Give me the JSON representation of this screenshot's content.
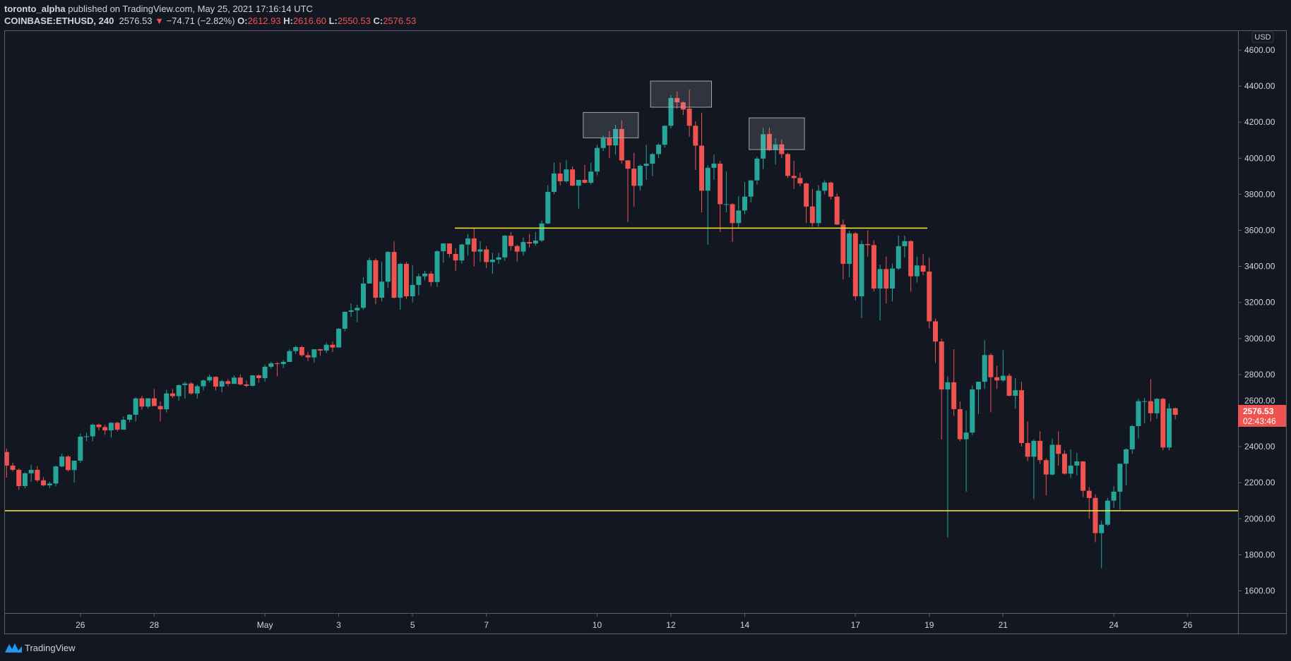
{
  "header": {
    "author": "toronto_alpha",
    "published": "published on TradingView.com, May 25, 2021 17:16:14 UTC",
    "symbol": "COINBASE:ETHUSD, 240",
    "last": "2576.53",
    "change_arrow": "▼",
    "change": "−74.71 (−2.82%)",
    "o_label": "O:",
    "o": "2612.93",
    "h_label": "H:",
    "h": "2616.60",
    "l_label": "L:",
    "l": "2550.53",
    "c_label": "C:",
    "c": "2576.53"
  },
  "price_axis": {
    "currency": "USD",
    "last_price_label": "2576.53",
    "countdown": "02:43:46"
  },
  "footer": {
    "brand": "TradingView"
  },
  "colors": {
    "up": "#26a69a",
    "down": "#ef5350",
    "line": "#ffeb3b",
    "background": "#131722",
    "last_price": "#ef5350"
  },
  "chart_data": {
    "type": "candlestick",
    "symbol": "COINBASE:ETHUSD",
    "interval_minutes": 240,
    "first_candle": "2021-04-24T00:00:00Z",
    "ylim": [
      1500,
      4650
    ],
    "yticks": [
      1600,
      1800,
      2000,
      2200,
      2400,
      2600,
      2800,
      3000,
      3200,
      3400,
      3600,
      3800,
      4000,
      4200,
      4400,
      4600
    ],
    "xticks": [
      {
        "label": "26",
        "date": "2021-04-26"
      },
      {
        "label": "28",
        "date": "2021-04-28"
      },
      {
        "label": "May",
        "date": "2021-05-01"
      },
      {
        "label": "3",
        "date": "2021-05-03"
      },
      {
        "label": "5",
        "date": "2021-05-05"
      },
      {
        "label": "7",
        "date": "2021-05-07"
      },
      {
        "label": "10",
        "date": "2021-05-10"
      },
      {
        "label": "12",
        "date": "2021-05-12"
      },
      {
        "label": "14",
        "date": "2021-05-14"
      },
      {
        "label": "17",
        "date": "2021-05-17"
      },
      {
        "label": "19",
        "date": "2021-05-19"
      },
      {
        "label": "21",
        "date": "2021-05-21"
      },
      {
        "label": "24",
        "date": "2021-05-24"
      },
      {
        "label": "26",
        "date": "2021-05-26"
      }
    ],
    "grid": false,
    "ohlc": [
      [
        2370,
        2390,
        2228,
        2295
      ],
      [
        2295,
        2310,
        2262,
        2271
      ],
      [
        2271,
        2280,
        2160,
        2181
      ],
      [
        2181,
        2258,
        2168,
        2252
      ],
      [
        2252,
        2300,
        2205,
        2271
      ],
      [
        2271,
        2292,
        2203,
        2213
      ],
      [
        2213,
        2230,
        2180,
        2185
      ],
      [
        2185,
        2205,
        2170,
        2195
      ],
      [
        2195,
        2295,
        2180,
        2290
      ],
      [
        2290,
        2360,
        2285,
        2345
      ],
      [
        2345,
        2352,
        2262,
        2270
      ],
      [
        2270,
        2322,
        2200,
        2322
      ],
      [
        2322,
        2472,
        2310,
        2455
      ],
      [
        2455,
        2478,
        2430,
        2457
      ],
      [
        2457,
        2528,
        2430,
        2522
      ],
      [
        2522,
        2528,
        2490,
        2508
      ],
      [
        2508,
        2521,
        2465,
        2490
      ],
      [
        2490,
        2536,
        2450,
        2532
      ],
      [
        2532,
        2538,
        2485,
        2494
      ],
      [
        2494,
        2568,
        2494,
        2549
      ],
      [
        2549,
        2580,
        2535,
        2577
      ],
      [
        2577,
        2675,
        2540,
        2667
      ],
      [
        2668,
        2682,
        2605,
        2622
      ],
      [
        2622,
        2668,
        2610,
        2668
      ],
      [
        2668,
        2720,
        2625,
        2625
      ],
      [
        2625,
        2650,
        2540,
        2607
      ],
      [
        2607,
        2715,
        2590,
        2695
      ],
      [
        2695,
        2720,
        2670,
        2680
      ],
      [
        2680,
        2745,
        2655,
        2741
      ],
      [
        2741,
        2760,
        2667,
        2750
      ],
      [
        2750,
        2757,
        2688,
        2695
      ],
      [
        2695,
        2744,
        2667,
        2735
      ],
      [
        2735,
        2772,
        2712,
        2767
      ],
      [
        2767,
        2800,
        2757,
        2787
      ],
      [
        2787,
        2790,
        2712,
        2733
      ],
      [
        2733,
        2770,
        2700,
        2763
      ],
      [
        2763,
        2775,
        2735,
        2748
      ],
      [
        2748,
        2795,
        2748,
        2783
      ],
      [
        2783,
        2800,
        2740,
        2745
      ],
      [
        2745,
        2767,
        2730,
        2737
      ],
      [
        2737,
        2797,
        2735,
        2795
      ],
      [
        2795,
        2800,
        2755,
        2780
      ],
      [
        2780,
        2855,
        2760,
        2843
      ],
      [
        2843,
        2870,
        2833,
        2862
      ],
      [
        2862,
        2868,
        2790,
        2858
      ],
      [
        2858,
        2880,
        2835,
        2870
      ],
      [
        2870,
        2940,
        2870,
        2930
      ],
      [
        2930,
        2960,
        2915,
        2952
      ],
      [
        2952,
        2960,
        2900,
        2907
      ],
      [
        2907,
        2925,
        2875,
        2895
      ],
      [
        2895,
        2940,
        2865,
        2940
      ],
      [
        2940,
        2943,
        2905,
        2933
      ],
      [
        2933,
        2977,
        2920,
        2965
      ],
      [
        2965,
        2983,
        2925,
        2950
      ],
      [
        2950,
        3058,
        2950,
        3054
      ],
      [
        3054,
        3150,
        3040,
        3148
      ],
      [
        3148,
        3195,
        3120,
        3156
      ],
      [
        3156,
        3188,
        3090,
        3170
      ],
      [
        3170,
        3340,
        3160,
        3305
      ],
      [
        3305,
        3448,
        3305,
        3434
      ],
      [
        3434,
        3445,
        3190,
        3226
      ],
      [
        3226,
        3425,
        3205,
        3315
      ],
      [
        3315,
        3485,
        3280,
        3480
      ],
      [
        3480,
        3540,
        3222,
        3226
      ],
      [
        3226,
        3420,
        3160,
        3414
      ],
      [
        3414,
        3425,
        3220,
        3234
      ],
      [
        3234,
        3405,
        3200,
        3297
      ],
      [
        3297,
        3360,
        3240,
        3345
      ],
      [
        3345,
        3375,
        3322,
        3360
      ],
      [
        3360,
        3373,
        3290,
        3313
      ],
      [
        3313,
        3490,
        3285,
        3484
      ],
      [
        3484,
        3527,
        3420,
        3527
      ],
      [
        3527,
        3527,
        3450,
        3469
      ],
      [
        3469,
        3500,
        3375,
        3433
      ],
      [
        3433,
        3525,
        3415,
        3521
      ],
      [
        3521,
        3580,
        3460,
        3555
      ],
      [
        3555,
        3612,
        3400,
        3482
      ],
      [
        3482,
        3540,
        3425,
        3494
      ],
      [
        3494,
        3513,
        3390,
        3424
      ],
      [
        3424,
        3475,
        3358,
        3437
      ],
      [
        3437,
        3476,
        3414,
        3450
      ],
      [
        3450,
        3575,
        3430,
        3570
      ],
      [
        3570,
        3590,
        3487,
        3513
      ],
      [
        3513,
        3520,
        3427,
        3482
      ],
      [
        3482,
        3560,
        3460,
        3535
      ],
      [
        3535,
        3580,
        3505,
        3527
      ],
      [
        3527,
        3590,
        3515,
        3543
      ],
      [
        3543,
        3655,
        3535,
        3638
      ],
      [
        3638,
        3850,
        3635,
        3813
      ],
      [
        3813,
        3975,
        3800,
        3915
      ],
      [
        3915,
        3975,
        3850,
        3872
      ],
      [
        3872,
        3990,
        3865,
        3938
      ],
      [
        3938,
        3955,
        3845,
        3848
      ],
      [
        3848,
        3880,
        3721,
        3880
      ],
      [
        3880,
        3962,
        3860,
        3864
      ],
      [
        3864,
        3975,
        3855,
        3926
      ],
      [
        3926,
        4075,
        3905,
        4057
      ],
      [
        4057,
        4128,
        4040,
        4110
      ],
      [
        4110,
        4150,
        4000,
        4071
      ],
      [
        4071,
        4185,
        4020,
        4162
      ],
      [
        4162,
        4210,
        3970,
        3988
      ],
      [
        3988,
        3990,
        3646,
        3942
      ],
      [
        3942,
        4030,
        3730,
        3847
      ],
      [
        3847,
        3965,
        3820,
        3958
      ],
      [
        3958,
        4075,
        3880,
        3970
      ],
      [
        3970,
        4030,
        3900,
        4023
      ],
      [
        4023,
        4082,
        4000,
        4075
      ],
      [
        4075,
        4180,
        4060,
        4180
      ],
      [
        4180,
        4350,
        4165,
        4334
      ],
      [
        4334,
        4370,
        4275,
        4310
      ],
      [
        4310,
        4315,
        4240,
        4270
      ],
      [
        4275,
        4381,
        4120,
        4180
      ],
      [
        4180,
        4205,
        3935,
        4070
      ],
      [
        4070,
        4252,
        3700,
        3820
      ],
      [
        3820,
        3960,
        3520,
        3947
      ],
      [
        3947,
        4020,
        3880,
        3970
      ],
      [
        3970,
        3985,
        3590,
        3745
      ],
      [
        3745,
        3926,
        3700,
        3745
      ],
      [
        3745,
        3750,
        3535,
        3640
      ],
      [
        3640,
        3790,
        3610,
        3710
      ],
      [
        3710,
        3868,
        3690,
        3787
      ],
      [
        3787,
        3878,
        3755,
        3877
      ],
      [
        3877,
        4008,
        3853,
        3998
      ],
      [
        3998,
        4170,
        3940,
        4133
      ],
      [
        4135,
        4170,
        4040,
        4045
      ],
      [
        4045,
        4110,
        3965,
        4077
      ],
      [
        4077,
        4105,
        4000,
        4023
      ],
      [
        4023,
        4030,
        3890,
        3902
      ],
      [
        3902,
        3985,
        3830,
        3890
      ],
      [
        3890,
        3920,
        3845,
        3860
      ],
      [
        3860,
        3865,
        3640,
        3732
      ],
      [
        3732,
        3830,
        3620,
        3640
      ],
      [
        3640,
        3850,
        3620,
        3820
      ],
      [
        3820,
        3878,
        3800,
        3865
      ],
      [
        3865,
        3870,
        3770,
        3787
      ],
      [
        3787,
        3805,
        3630,
        3632
      ],
      [
        3632,
        3660,
        3328,
        3414
      ],
      [
        3414,
        3598,
        3340,
        3583
      ],
      [
        3583,
        3590,
        3210,
        3234
      ],
      [
        3234,
        3545,
        3113,
        3524
      ],
      [
        3524,
        3600,
        3455,
        3518
      ],
      [
        3518,
        3545,
        3260,
        3277
      ],
      [
        3277,
        3410,
        3101,
        3385
      ],
      [
        3385,
        3455,
        3195,
        3277
      ],
      [
        3277,
        3415,
        3205,
        3388
      ],
      [
        3388,
        3570,
        3380,
        3512
      ],
      [
        3512,
        3570,
        3450,
        3540
      ],
      [
        3540,
        3545,
        3260,
        3345
      ],
      [
        3345,
        3455,
        3310,
        3405
      ],
      [
        3405,
        3470,
        3350,
        3371
      ],
      [
        3371,
        3450,
        3055,
        3095
      ],
      [
        3095,
        3110,
        2865,
        2983
      ],
      [
        2983,
        3000,
        2440,
        2717
      ],
      [
        2717,
        2790,
        1895,
        2757
      ],
      [
        2757,
        2940,
        2570,
        2608
      ],
      [
        2608,
        2650,
        2430,
        2441
      ],
      [
        2441,
        2600,
        2150,
        2478
      ],
      [
        2478,
        2740,
        2465,
        2717
      ],
      [
        2717,
        2760,
        2580,
        2760
      ],
      [
        2760,
        2990,
        2720,
        2908
      ],
      [
        2908,
        2918,
        2590,
        2785
      ],
      [
        2785,
        2850,
        2720,
        2767
      ],
      [
        2767,
        2935,
        2760,
        2793
      ],
      [
        2793,
        2805,
        2680,
        2682
      ],
      [
        2682,
        2780,
        2610,
        2713
      ],
      [
        2713,
        2760,
        2400,
        2420
      ],
      [
        2420,
        2540,
        2320,
        2344
      ],
      [
        2344,
        2440,
        2110,
        2432
      ],
      [
        2432,
        2485,
        2305,
        2325
      ],
      [
        2325,
        2335,
        2130,
        2245
      ],
      [
        2245,
        2445,
        2240,
        2410
      ],
      [
        2410,
        2485,
        2295,
        2360
      ],
      [
        2360,
        2380,
        2245,
        2250
      ],
      [
        2250,
        2385,
        2225,
        2295
      ],
      [
        2295,
        2365,
        2240,
        2318
      ],
      [
        2318,
        2320,
        2120,
        2155
      ],
      [
        2155,
        2175,
        2000,
        2115
      ],
      [
        2115,
        2135,
        1870,
        1920
      ],
      [
        1920,
        1990,
        1725,
        1967
      ],
      [
        1967,
        2115,
        1960,
        2100
      ],
      [
        2100,
        2180,
        2060,
        2150
      ],
      [
        2150,
        2305,
        2050,
        2305
      ],
      [
        2305,
        2390,
        2185,
        2385
      ],
      [
        2385,
        2520,
        2360,
        2514
      ],
      [
        2514,
        2665,
        2445,
        2652
      ],
      [
        2652,
        2670,
        2530,
        2652
      ],
      [
        2652,
        2775,
        2540,
        2585
      ],
      [
        2585,
        2670,
        2555,
        2665
      ],
      [
        2665,
        2670,
        2380,
        2395
      ],
      [
        2395,
        2640,
        2380,
        2612
      ],
      [
        2612.93,
        2616.6,
        2550.53,
        2576.53
      ]
    ],
    "annotations": {
      "horizontal_lines": [
        {
          "price": 3612,
          "from": "2021-05-06T03:30:00Z",
          "to": "2021-05-18T22:45:00Z"
        },
        {
          "price": 2044,
          "from": "full-width",
          "to": "full-width"
        }
      ],
      "rectangles": [
        {
          "from": "2021-05-09T15:00:00Z",
          "to": "2021-05-11T02:50:00Z",
          "top": 4254,
          "bottom": 4113
        },
        {
          "from": "2021-05-11T10:45:00Z",
          "to": "2021-05-13T02:25:00Z",
          "top": 4428,
          "bottom": 4283
        },
        {
          "from": "2021-05-14T02:50:00Z",
          "to": "2021-05-15T14:50:00Z",
          "top": 4224,
          "bottom": 4048
        }
      ]
    }
  }
}
